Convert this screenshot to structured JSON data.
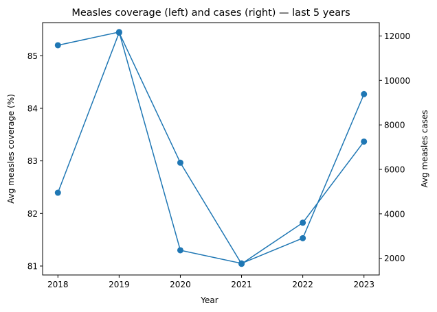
{
  "chart_data": {
    "type": "line",
    "title": "Measles coverage (left) and cases (right) — last 5 years",
    "xlabel": "Year",
    "ylabel_left": "Avg measles coverage (%)",
    "ylabel_right": "Avg measles cases",
    "x": [
      2018,
      2019,
      2020,
      2021,
      2022,
      2023
    ],
    "x_tick_labels": [
      "2018",
      "2019",
      "2020",
      "2021",
      "2022",
      "2023"
    ],
    "y_left_ticks": [
      81,
      82,
      83,
      84,
      85
    ],
    "y_right_ticks": [
      2000,
      4000,
      6000,
      8000,
      10000,
      12000
    ],
    "y_left_range": [
      80.83,
      85.63
    ],
    "y_right_range": [
      1250,
      12600
    ],
    "line_color": "#1f77b4",
    "grid": false,
    "series": [
      {
        "axis": "left",
        "values": [
          85.2,
          85.45,
          81.3,
          81.05,
          81.53,
          84.27
        ]
      },
      {
        "axis": "right",
        "values": [
          4950,
          12150,
          6300,
          1750,
          3600,
          7250
        ]
      }
    ]
  }
}
